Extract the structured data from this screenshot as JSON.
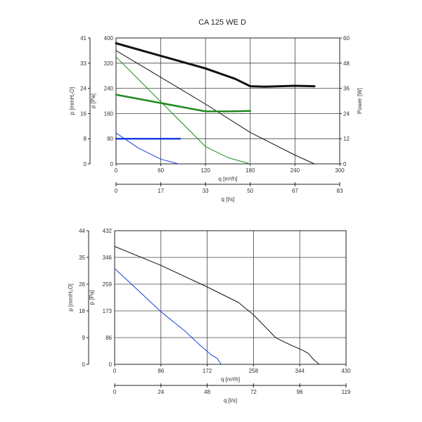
{
  "title": "CA 125 WE D",
  "colors": {
    "black": "#111111",
    "green": "#1e8a1e",
    "blue": "#1a3fe0"
  },
  "chart_data": [
    {
      "type": "line",
      "title": "CA 125 WE D",
      "xlabel": "q [m³/h]",
      "x2label": "q [l/s]",
      "ylabel": "p [Pa]",
      "y2label": "p [mmH₂O]",
      "y3label": "Power [W]",
      "xlim": [
        0,
        300
      ],
      "ylim": [
        0,
        400
      ],
      "y3lim": [
        0,
        60
      ],
      "grid": true,
      "x_ticks": [
        "0",
        "60",
        "120",
        "180",
        "240",
        "300"
      ],
      "x2_ticks": [
        "0",
        "17",
        "33",
        "50",
        "67",
        "83"
      ],
      "y_ticks": [
        "0",
        "80",
        "160",
        "240",
        "320",
        "400"
      ],
      "y2_ticks": [
        "0",
        "8",
        "16",
        "24",
        "33",
        "41"
      ],
      "y3_ticks": [
        "0",
        "12",
        "24",
        "36",
        "48",
        "60"
      ],
      "series": [
        {
          "color": "black",
          "width": 1,
          "axis": "pressure",
          "x": [
            0,
            60,
            120,
            180,
            240,
            266
          ],
          "y": [
            360,
            275,
            190,
            100,
            28,
            0
          ]
        },
        {
          "color": "black",
          "width": 3,
          "axis": "power",
          "x": [
            0,
            60,
            120,
            160,
            180,
            200,
            240,
            266
          ],
          "y": [
            57.5,
            51.5,
            45.5,
            40.5,
            37,
            36.8,
            37.2,
            37
          ]
        },
        {
          "color": "green",
          "width": 1,
          "axis": "pressure",
          "x": [
            0,
            40,
            80,
            120,
            150,
            180
          ],
          "y": [
            340,
            245,
            150,
            55,
            20,
            0
          ]
        },
        {
          "color": "green",
          "width": 2.5,
          "axis": "power",
          "x": [
            0,
            60,
            120,
            150,
            180
          ],
          "y": [
            33,
            29,
            25,
            25,
            25.2
          ]
        },
        {
          "color": "blue",
          "width": 1,
          "axis": "pressure",
          "x": [
            0,
            30,
            60,
            84
          ],
          "y": [
            98,
            50,
            15,
            0
          ]
        },
        {
          "color": "blue",
          "width": 2.5,
          "axis": "power",
          "x": [
            0,
            86
          ],
          "y": [
            12,
            12
          ]
        }
      ]
    },
    {
      "type": "line",
      "xlabel": "q [m³/h]",
      "x2label": "q [l/s]",
      "ylabel": "p [Pa]",
      "y2label": "p [mmH₂O]",
      "xlim": [
        0,
        430
      ],
      "ylim": [
        0,
        432
      ],
      "grid": true,
      "x_ticks": [
        "0",
        "86",
        "172",
        "258",
        "344",
        "430"
      ],
      "x2_ticks": [
        "0",
        "24",
        "48",
        "72",
        "96",
        "119"
      ],
      "y_ticks": [
        "0",
        "86",
        "173",
        "259",
        "346",
        "432"
      ],
      "y2_ticks": [
        "0",
        "9",
        "18",
        "26",
        "35",
        "44"
      ],
      "series": [
        {
          "color": "black",
          "width": 1,
          "axis": "pressure",
          "x": [
            0,
            86,
            172,
            230,
            258,
            300,
            330,
            350,
            360,
            370,
            380
          ],
          "y": [
            381,
            320,
            250,
            200,
            160,
            85,
            60,
            45,
            35,
            15,
            0
          ]
        },
        {
          "color": "blue",
          "width": 1,
          "axis": "pressure",
          "x": [
            0,
            43,
            86,
            129,
            160,
            180,
            190,
            198
          ],
          "y": [
            310,
            240,
            170,
            110,
            60,
            30,
            20,
            0
          ]
        }
      ]
    }
  ]
}
